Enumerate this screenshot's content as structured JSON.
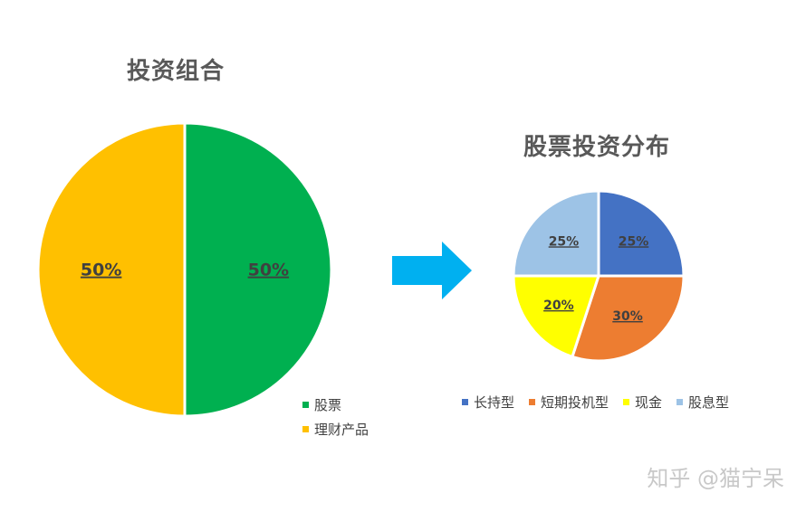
{
  "chart_data": [
    {
      "type": "pie",
      "title": "投资组合",
      "slices": [
        {
          "label": "股票",
          "value": 50,
          "display": "50%",
          "color": "#00b050"
        },
        {
          "label": "理财产品",
          "value": 50,
          "display": "50%",
          "color": "#ffc000"
        }
      ],
      "legend": "right-bottom"
    },
    {
      "type": "pie",
      "title": "股票投资分布",
      "slices": [
        {
          "label": "长持型",
          "value": 25,
          "display": "25%",
          "color": "#4472c4"
        },
        {
          "label": "短期投机型",
          "value": 30,
          "display": "30%",
          "color": "#ed7d31"
        },
        {
          "label": "现金",
          "value": 20,
          "display": "20%",
          "color": "#ffff00"
        },
        {
          "label": "股息型",
          "value": 25,
          "display": "25%",
          "color": "#9dc3e6"
        }
      ],
      "legend": "bottom"
    }
  ],
  "arrow_color": "#00b0f0",
  "label_color": "#404040",
  "watermark": "知乎 @猫宁呆"
}
